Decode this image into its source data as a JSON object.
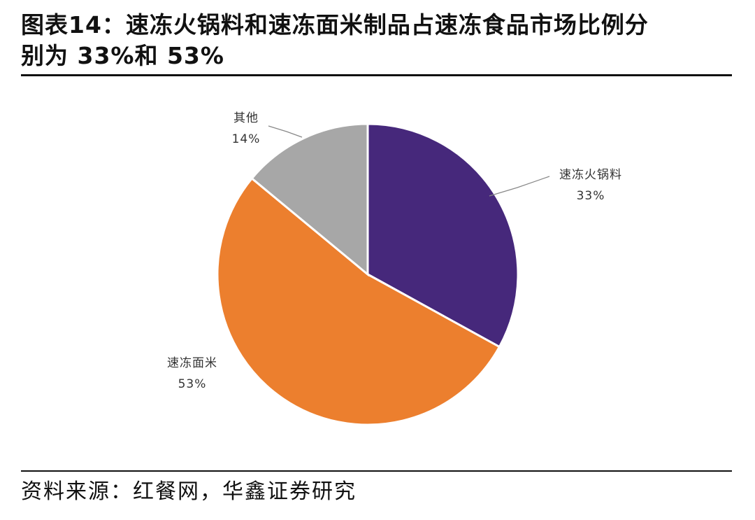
{
  "title_line1": "图表14：速冻火锅料和速冻面米制品占速冻食品市场比例分",
  "title_line2": "别为 33%和 53%",
  "source": "资料来源：红餐网，华鑫证券研究",
  "chart_data": {
    "type": "pie",
    "start": "top, clockwise",
    "slices": [
      {
        "name": "速冻火锅料",
        "value": 33,
        "label": "33%",
        "color": "#46287b"
      },
      {
        "name": "速冻面米",
        "value": 53,
        "label": "53%",
        "color": "#ec7f2e"
      },
      {
        "name": "其他",
        "value": 14,
        "label": "14%",
        "color": "#a7a7a7"
      }
    ]
  }
}
